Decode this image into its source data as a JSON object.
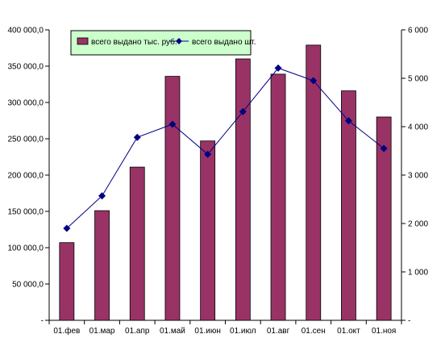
{
  "chart_data": {
    "type": "bar+line",
    "categories": [
      "01.фев",
      "01.мар",
      "01.апр",
      "01.май",
      "01.июн",
      "01.июл",
      "01.авг",
      "01.сен",
      "01.окт",
      "01.ноя"
    ],
    "series": [
      {
        "name": "всего выдано тыс. руб.",
        "type": "bar",
        "axis": "left",
        "color": "#993366",
        "values": [
          107000,
          151000,
          211000,
          336000,
          247000,
          360000,
          339000,
          379000,
          316000,
          280000
        ]
      },
      {
        "name": "всего выдано шт.",
        "type": "line",
        "axis": "right",
        "color": "#000080",
        "values": [
          1900,
          2570,
          3780,
          4050,
          3430,
          4310,
          5210,
          4950,
          4120,
          3550
        ]
      }
    ],
    "y_left": {
      "ylim": [
        0,
        400000
      ],
      "ticks": [
        {
          "value": 0,
          "label": "-"
        },
        {
          "value": 50000,
          "label": "50 000,0"
        },
        {
          "value": 100000,
          "label": "100 000,0"
        },
        {
          "value": 150000,
          "label": "150 000,0"
        },
        {
          "value": 200000,
          "label": "200 000,0"
        },
        {
          "value": 250000,
          "label": "250 000,0"
        },
        {
          "value": 300000,
          "label": "300 000,0"
        },
        {
          "value": 350000,
          "label": "350 000,0"
        },
        {
          "value": 400000,
          "label": "400 000,0"
        }
      ]
    },
    "y_right": {
      "ylim": [
        0,
        6000
      ],
      "ticks": [
        {
          "value": 0,
          "label": "-"
        },
        {
          "value": 1000,
          "label": "1 000"
        },
        {
          "value": 2000,
          "label": "2 000"
        },
        {
          "value": 3000,
          "label": "3 000"
        },
        {
          "value": 4000,
          "label": "4 000"
        },
        {
          "value": 5000,
          "label": "5 000"
        },
        {
          "value": 6000,
          "label": "6 000"
        }
      ]
    },
    "grid": false,
    "legend": {
      "position": "top-left",
      "background": "#ccffcc"
    }
  }
}
